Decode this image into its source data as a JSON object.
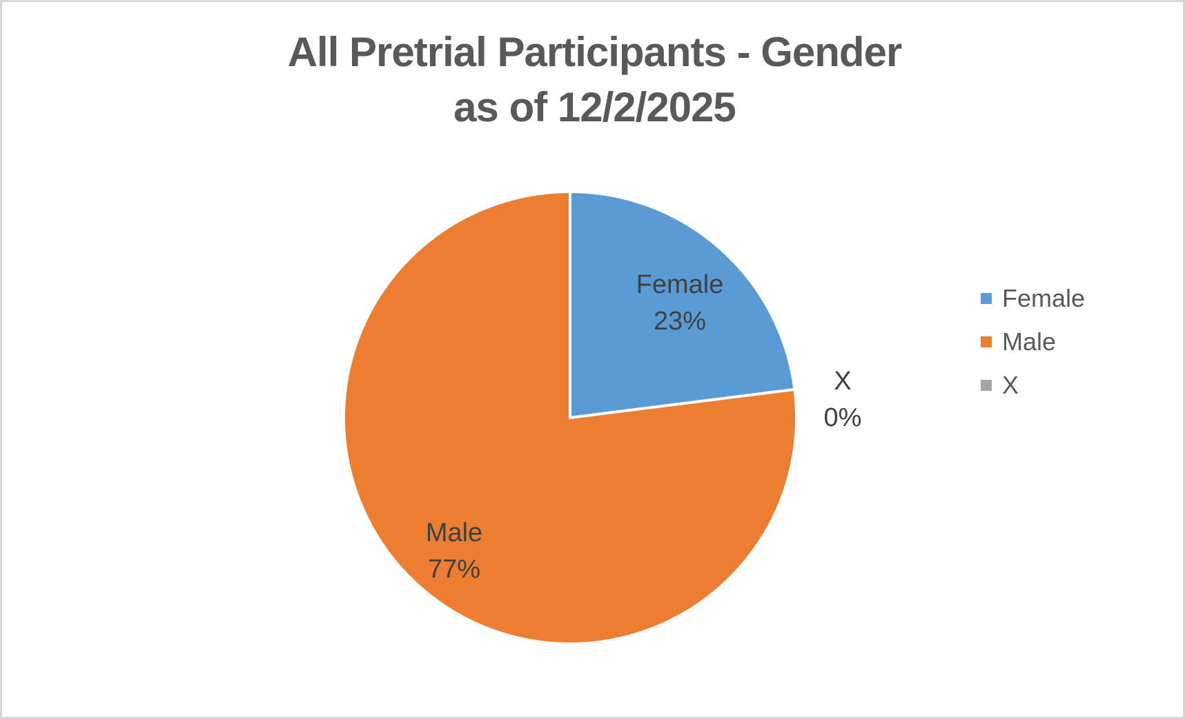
{
  "chart": {
    "title_line1": "All Pretrial Participants - Gender",
    "title_line2": "as of 12/2/2025"
  },
  "chart_data": {
    "type": "pie",
    "title": "All Pretrial Participants - Gender as of 12/2/2025",
    "categories": [
      "Female",
      "Male",
      "X"
    ],
    "values": [
      23,
      77,
      0
    ],
    "slices": [
      {
        "label": "Female",
        "value": 23,
        "color": "#5B9BD5"
      },
      {
        "label": "Male",
        "value": 77,
        "color": "#ED7D31"
      },
      {
        "label": "X",
        "value": 0,
        "color": "#A5A5A5"
      }
    ],
    "data_labels": "category name + percent",
    "start_angle_deg": 0,
    "direction": "clockwise",
    "legend_position": "right"
  },
  "labels": {
    "female": {
      "name": "Female",
      "pct": "23%"
    },
    "male": {
      "name": "Male",
      "pct": "77%"
    },
    "x": {
      "name": "X",
      "pct": "0%"
    }
  },
  "legend": {
    "items": [
      {
        "label": "Female",
        "color": "#5B9BD5"
      },
      {
        "label": "Male",
        "color": "#ED7D31"
      },
      {
        "label": "X",
        "color": "#A5A5A5"
      }
    ]
  },
  "colors": {
    "title_text": "#595959",
    "label_text": "#404040",
    "frame_border": "#D6D6D6",
    "slice_border": "#FFFFFF"
  }
}
